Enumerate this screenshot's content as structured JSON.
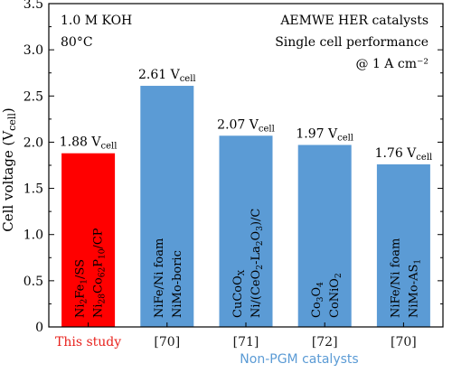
{
  "chart_data": {
    "type": "bar",
    "ylabel": "Cell voltage (V_cell)",
    "ylim": [
      0,
      3.5
    ],
    "yticks": [
      "0",
      "0.5",
      "1.0",
      "1.5",
      "2.0",
      "2.5",
      "3.0",
      "3.5"
    ],
    "conditions": [
      "1.0 M KOH",
      "80°C"
    ],
    "header": [
      "AEMWE HER catalysts",
      "Single cell performance",
      "@ 1 A cm⁻²"
    ],
    "group_label": "Non-PGM catalysts",
    "bars": [
      {
        "category": "This study",
        "value": 1.88,
        "value_label": "1.88 V",
        "value_sub": "cell",
        "lines": [
          [
            {
              "t": "Ni"
            },
            {
              "t": "2",
              "sub": true
            },
            {
              "t": "Fe"
            },
            {
              "t": "1",
              "sub": true
            },
            {
              "t": "/SS"
            }
          ],
          [
            {
              "t": "Ni"
            },
            {
              "t": "28",
              "sub": true
            },
            {
              "t": "Co"
            },
            {
              "t": "62",
              "sub": true
            },
            {
              "t": "P"
            },
            {
              "t": "10",
              "sub": true
            },
            {
              "t": "/CP"
            }
          ]
        ],
        "color": "#ff0000",
        "label_color": "#e8231e"
      },
      {
        "category": "[70]",
        "value": 2.61,
        "value_label": "2.61 V",
        "value_sub": "cell",
        "lines": [
          [
            {
              "t": "NiFe/Ni foam"
            }
          ],
          [
            {
              "t": "NiMo-boric"
            }
          ]
        ],
        "color": "#5b9bd5",
        "label_color": "#1a1a1a"
      },
      {
        "category": "[71]",
        "value": 2.07,
        "value_label": "2.07 V",
        "value_sub": "cell",
        "lines": [
          [
            {
              "t": "CuCoO"
            },
            {
              "t": "X",
              "sub": true
            }
          ],
          [
            {
              "t": "Ni/(CeO"
            },
            {
              "t": "2",
              "sub": true
            },
            {
              "t": "-La"
            },
            {
              "t": "2",
              "sub": true
            },
            {
              "t": "O"
            },
            {
              "t": "3",
              "sub": true
            },
            {
              "t": ")/C"
            }
          ]
        ],
        "color": "#5b9bd5",
        "label_color": "#1a1a1a"
      },
      {
        "category": "[72]",
        "value": 1.97,
        "value_label": "1.97 V",
        "value_sub": "cell",
        "lines": [
          [
            {
              "t": "Co"
            },
            {
              "t": "3",
              "sub": true
            },
            {
              "t": "O"
            },
            {
              "t": "4",
              "sub": true
            }
          ],
          [
            {
              "t": "CoNiO"
            },
            {
              "t": "2",
              "sub": true
            }
          ]
        ],
        "color": "#5b9bd5",
        "label_color": "#1a1a1a"
      },
      {
        "category": "[70]",
        "value": 1.76,
        "value_label": "1.76 V",
        "value_sub": "cell",
        "lines": [
          [
            {
              "t": "NiFe/Ni foam"
            }
          ],
          [
            {
              "t": "NiMo-AS"
            },
            {
              "t": "1",
              "sub": true
            }
          ]
        ],
        "color": "#5b9bd5",
        "label_color": "#1a1a1a"
      }
    ],
    "colors": {
      "group_label": "#5b9bd5",
      "axis": "#000000"
    },
    "grid": false
  }
}
